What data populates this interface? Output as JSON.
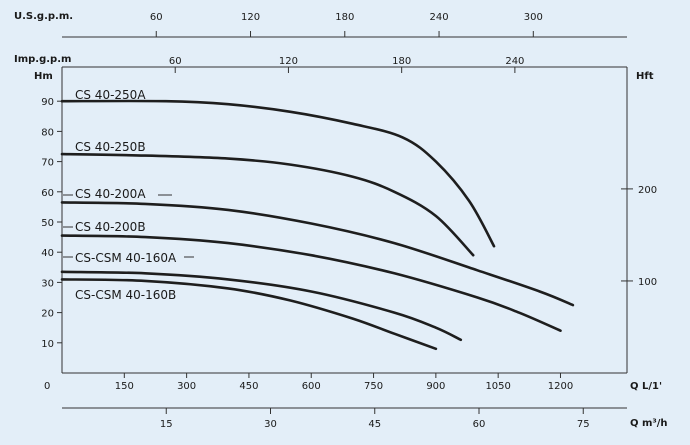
{
  "chart_data": {
    "type": "line",
    "title": "",
    "grid": false,
    "x": {
      "label": "Q L/1'",
      "range": [
        0,
        1300
      ],
      "ticks": [
        0,
        150,
        300,
        450,
        600,
        750,
        900,
        1050,
        1200
      ]
    },
    "y": {
      "label": "Hm",
      "range": [
        0,
        100
      ],
      "ticks": [
        10,
        20,
        30,
        40,
        50,
        60,
        70,
        80,
        90
      ],
      "zero_label": "0"
    },
    "secondary_axes": {
      "usgpm": {
        "label": "U.S.g.p.m.",
        "ticks": [
          "60",
          "120",
          "180",
          "240",
          "300"
        ],
        "values": [
          60,
          120,
          180,
          240,
          300
        ]
      },
      "impgpm": {
        "label": "Imp.g.p.m",
        "ticks": [
          "60",
          "120",
          "180",
          "240"
        ],
        "values": [
          60,
          120,
          180,
          240
        ]
      },
      "m3h": {
        "label": "Q m³/h",
        "ticks": [
          "15",
          "30",
          "45",
          "60",
          "75"
        ],
        "values": [
          15,
          30,
          45,
          60,
          75
        ]
      },
      "hft": {
        "label": "Hft",
        "ticks": [
          "200",
          "100"
        ],
        "values": [
          200,
          100
        ]
      }
    },
    "series": [
      {
        "name": "CS 40-250A",
        "points": [
          [
            0,
            90
          ],
          [
            250,
            90
          ],
          [
            400,
            89
          ],
          [
            550,
            86.5
          ],
          [
            700,
            82.5
          ],
          [
            820,
            78
          ],
          [
            900,
            70
          ],
          [
            980,
            57
          ],
          [
            1040,
            42
          ]
        ]
      },
      {
        "name": "CS 40-250B",
        "points": [
          [
            0,
            72.5
          ],
          [
            200,
            72
          ],
          [
            400,
            71
          ],
          [
            550,
            69
          ],
          [
            700,
            65
          ],
          [
            800,
            60
          ],
          [
            900,
            52
          ],
          [
            990,
            39
          ]
        ]
      },
      {
        "name": "CS 40-200A",
        "points": [
          [
            0,
            56.5
          ],
          [
            200,
            56
          ],
          [
            400,
            54
          ],
          [
            600,
            49.5
          ],
          [
            800,
            43
          ],
          [
            1000,
            34
          ],
          [
            1150,
            27
          ],
          [
            1230,
            22.5
          ]
        ]
      },
      {
        "name": "CS 40-200B",
        "points": [
          [
            0,
            45.5
          ],
          [
            200,
            45
          ],
          [
            400,
            43
          ],
          [
            600,
            39
          ],
          [
            800,
            33
          ],
          [
            1000,
            25
          ],
          [
            1100,
            20
          ],
          [
            1200,
            14
          ]
        ]
      },
      {
        "name": "CS-CSM 40-160A",
        "points": [
          [
            0,
            33.5
          ],
          [
            200,
            33
          ],
          [
            400,
            31
          ],
          [
            600,
            27
          ],
          [
            800,
            20
          ],
          [
            900,
            15
          ],
          [
            960,
            11
          ]
        ]
      },
      {
        "name": "CS-CSM 40-160B",
        "points": [
          [
            0,
            31
          ],
          [
            200,
            30.5
          ],
          [
            400,
            28
          ],
          [
            550,
            24
          ],
          [
            700,
            18
          ],
          [
            800,
            13
          ],
          [
            900,
            8
          ]
        ]
      }
    ]
  }
}
